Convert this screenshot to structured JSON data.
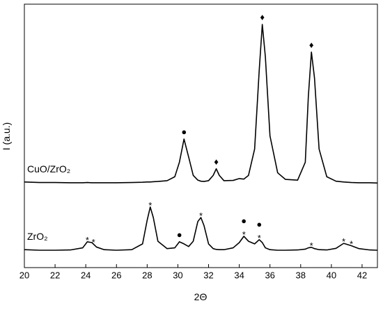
{
  "chart_data": {
    "type": "line",
    "xlabel": "2Θ",
    "ylabel": "I (a.u.)",
    "xlim": [
      20,
      43
    ],
    "xticks": [
      20,
      22,
      24,
      26,
      28,
      30,
      32,
      34,
      36,
      38,
      40,
      42
    ],
    "ylim": [
      0,
      100
    ],
    "x": [
      20,
      21,
      22,
      23,
      23.8,
      24.1,
      24.4,
      24.7,
      25.2,
      26,
      27,
      27.7,
      28,
      28.2,
      28.4,
      28.7,
      29.3,
      29.8,
      30.1,
      30.4,
      30.7,
      31,
      31.3,
      31.5,
      31.7,
      32,
      32.3,
      32.5,
      32.7,
      33,
      33.6,
      34,
      34.3,
      34.6,
      35,
      35.3,
      35.5,
      35.7,
      36,
      36.5,
      37,
      37.8,
      38.3,
      38.5,
      38.7,
      38.9,
      39.2,
      39.7,
      40.3,
      40.8,
      41.3,
      41.8,
      42.5,
      43
    ],
    "series": [
      {
        "name": "CuO/ZrO₂",
        "color": "#000000",
        "values": [
          32.5,
          32.3,
          32.3,
          32.2,
          32.2,
          32.3,
          32.2,
          32.2,
          32.2,
          32.2,
          32.3,
          32.4,
          32.5,
          32.5,
          32.6,
          32.7,
          33,
          34.5,
          40,
          48.8,
          42,
          35,
          33.2,
          32.8,
          32.7,
          33,
          35,
          37.5,
          35,
          33,
          33.1,
          33.8,
          33.6,
          35,
          45,
          75,
          92.3,
          80,
          50,
          36,
          33.5,
          33.2,
          40,
          65,
          81.8,
          72,
          45,
          34.5,
          32.8,
          32.5,
          32.3,
          32.2,
          32.2,
          32.1
        ],
        "markers": [
          {
            "label": "●",
            "x": 30.4
          },
          {
            "label": "♦",
            "x": 32.5
          },
          {
            "label": "♦",
            "x": 35.5
          },
          {
            "label": "♦",
            "x": 38.7
          }
        ]
      },
      {
        "name": "ZrO₂",
        "color": "#000000",
        "values": [
          6.8,
          6.6,
          6.6,
          6.7,
          7.5,
          9.8,
          9.5,
          7.8,
          6.8,
          6.6,
          6.8,
          9,
          18,
          23,
          19,
          10,
          7.2,
          7.5,
          9.8,
          9,
          8,
          10,
          17.5,
          19,
          16,
          9,
          7.2,
          6.9,
          6.8,
          6.8,
          7.5,
          9.5,
          11.9,
          10,
          9,
          10.6,
          9.5,
          7.5,
          6.8,
          6.6,
          6.6,
          6.7,
          7,
          7.5,
          7.7,
          7.2,
          6.8,
          6.7,
          7.3,
          9.2,
          8.3,
          7.2,
          6.7,
          6.6
        ],
        "markers": [
          {
            "label": "*",
            "x": 24.1
          },
          {
            "label": "*",
            "x": 24.5
          },
          {
            "label": "*",
            "x": 28.2
          },
          {
            "label": "●",
            "x": 30.1
          },
          {
            "label": "*",
            "x": 31.5
          },
          {
            "label": "*",
            "x": 34.3
          },
          {
            "label": "●",
            "x": 34.3
          },
          {
            "label": "*",
            "x": 35.3
          },
          {
            "label": "●",
            "x": 35.3
          },
          {
            "label": "*",
            "x": 38.7
          },
          {
            "label": "*",
            "x": 40.8
          },
          {
            "label": "*",
            "x": 41.3
          }
        ]
      }
    ]
  }
}
